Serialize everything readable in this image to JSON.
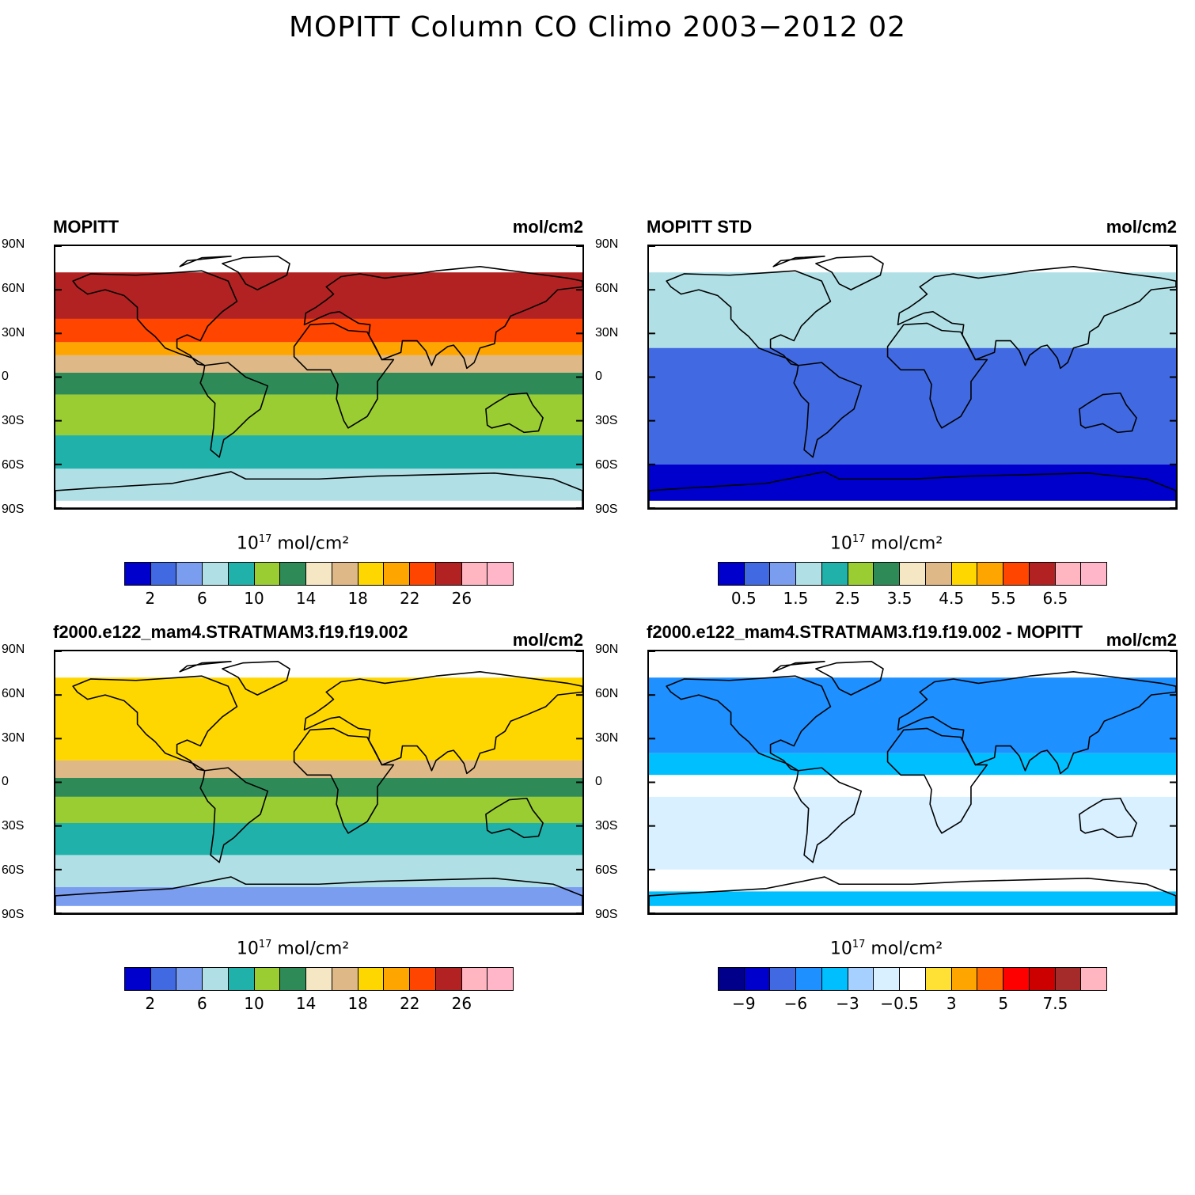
{
  "title": "MOPITT Column CO Climo 2003−2012 02",
  "lat_labels": [
    "90N",
    "60N",
    "30N",
    "0",
    "30S",
    "60S",
    "90S"
  ],
  "colorbar_units": {
    "base": "10",
    "exp": "17",
    "rest": " mol/cm²"
  },
  "panels": [
    {
      "title": "MOPITT",
      "units": "mol/cm2",
      "palette": [
        "#0000cd",
        "#4169e1",
        "#7b9df0",
        "#b0e0e6",
        "#20b2aa",
        "#9acd32",
        "#2e8b57",
        "#f5e6c4",
        "#deb887",
        "#ffd700",
        "#ffa500",
        "#ff4500",
        "#b22222",
        "#ffb6c1",
        "#ffb6c8"
      ],
      "ticks": [
        "2",
        "6",
        "10",
        "14",
        "18",
        "22",
        "26"
      ],
      "bands": [
        {
          "lat_top": 72,
          "lat_bottom": 40,
          "level": 12
        },
        {
          "lat_top": 40,
          "lat_bottom": 24,
          "level": 11
        },
        {
          "lat_top": 24,
          "lat_bottom": 15,
          "level": 10
        },
        {
          "lat_top": 15,
          "lat_bottom": 3,
          "level": 8
        },
        {
          "lat_top": 3,
          "lat_bottom": -12,
          "level": 6
        },
        {
          "lat_top": -12,
          "lat_bottom": -40,
          "level": 5
        },
        {
          "lat_top": -40,
          "lat_bottom": -63,
          "level": 4
        },
        {
          "lat_top": -63,
          "lat_bottom": -85,
          "level": 3
        }
      ]
    },
    {
      "title": "MOPITT STD",
      "units": "mol/cm2",
      "palette": [
        "#0000cd",
        "#4169e1",
        "#7b9df0",
        "#b0e0e6",
        "#20b2aa",
        "#9acd32",
        "#2e8b57",
        "#f5e6c4",
        "#deb887",
        "#ffd700",
        "#ffa500",
        "#ff4500",
        "#b22222",
        "#ffb6c1",
        "#ffb6c8"
      ],
      "ticks": [
        "0.5",
        "1.5",
        "2.5",
        "3.5",
        "4.5",
        "5.5",
        "6.5"
      ],
      "bands": [
        {
          "lat_top": 72,
          "lat_bottom": 20,
          "level": 3
        },
        {
          "lat_top": 20,
          "lat_bottom": -60,
          "level": 1
        },
        {
          "lat_top": -60,
          "lat_bottom": -85,
          "level": 0
        }
      ]
    },
    {
      "title": "f2000.e122_mam4.STRATMAM3.f19.f19.002",
      "units": "mol/cm2",
      "palette": [
        "#0000cd",
        "#4169e1",
        "#7b9df0",
        "#b0e0e6",
        "#20b2aa",
        "#9acd32",
        "#2e8b57",
        "#f5e6c4",
        "#deb887",
        "#ffd700",
        "#ffa500",
        "#ff4500",
        "#b22222",
        "#ffb6c1",
        "#ffb6c8"
      ],
      "ticks": [
        "2",
        "6",
        "10",
        "14",
        "18",
        "22",
        "26"
      ],
      "bands": [
        {
          "lat_top": 72,
          "lat_bottom": 15,
          "level": 9
        },
        {
          "lat_top": 15,
          "lat_bottom": 3,
          "level": 8
        },
        {
          "lat_top": 3,
          "lat_bottom": -10,
          "level": 6
        },
        {
          "lat_top": -10,
          "lat_bottom": -28,
          "level": 5
        },
        {
          "lat_top": -28,
          "lat_bottom": -50,
          "level": 4
        },
        {
          "lat_top": -50,
          "lat_bottom": -72,
          "level": 3
        },
        {
          "lat_top": -72,
          "lat_bottom": -85,
          "level": 2
        }
      ]
    },
    {
      "title": "f2000.e122_mam4.STRATMAM3.f19.f19.002 - MOPITT",
      "units": "mol/cm2",
      "palette": [
        "#00008b",
        "#0000cd",
        "#4169e1",
        "#1e90ff",
        "#00bfff",
        "#a5d0ff",
        "#d8f0ff",
        "#ffffff",
        "#ffe135",
        "#ffa500",
        "#ff6a00",
        "#ff0000",
        "#cd0000",
        "#a52a2a",
        "#ffb6c1"
      ],
      "ticks": [
        "−9",
        "−6",
        "−3",
        "−0.5",
        "3",
        "5",
        "7.5"
      ],
      "bands": [
        {
          "lat_top": 72,
          "lat_bottom": 20,
          "level": 3
        },
        {
          "lat_top": 20,
          "lat_bottom": 5,
          "level": 4
        },
        {
          "lat_top": 5,
          "lat_bottom": -10,
          "level": 7
        },
        {
          "lat_top": -10,
          "lat_bottom": -60,
          "level": 6
        },
        {
          "lat_top": -60,
          "lat_bottom": -75,
          "level": 7
        },
        {
          "lat_top": -75,
          "lat_bottom": -85,
          "level": 4
        }
      ]
    }
  ]
}
